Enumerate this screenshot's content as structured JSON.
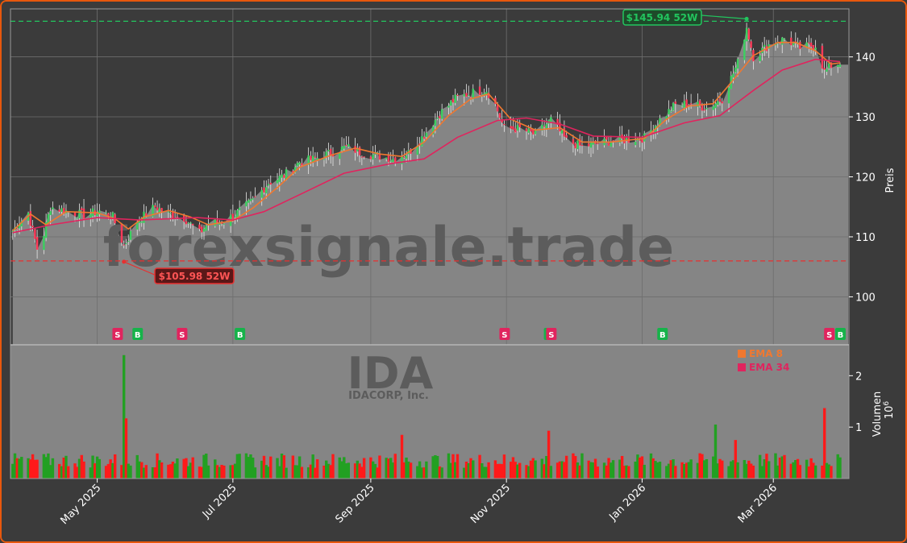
{
  "colors": {
    "background": "#3b3b3b",
    "plot_fill": "#858585",
    "border_accent": "#e8580c",
    "up": "#22a022",
    "down": "#ff1a1a",
    "ema8": "#f07830",
    "ema34": "#e0245e",
    "high_line": "#22c55e",
    "low_line": "#e83030",
    "buy": "#16b34a",
    "sell": "#e0245e"
  },
  "watermark": {
    "main": "forexsignale.trade",
    "ticker": "IDA",
    "company": "IDACORP, Inc."
  },
  "chart_data": [
    {
      "type": "candlestick",
      "ylabel": "Preis",
      "ylim": [
        92,
        148
      ],
      "yticks": [
        100,
        110,
        120,
        130,
        140
      ],
      "x_range": [
        "2025-03-23",
        "2026-04-04"
      ],
      "xticks": [
        {
          "date": "2025-05-01",
          "label": "May 2025"
        },
        {
          "date": "2025-07-01",
          "label": "Jul 2025"
        },
        {
          "date": "2025-09-01",
          "label": "Sep 2025"
        },
        {
          "date": "2025-11-01",
          "label": "Nov 2025"
        },
        {
          "date": "2026-01-01",
          "label": "Jan 2026"
        },
        {
          "date": "2026-03-01",
          "label": "Mar 2026"
        }
      ],
      "grid": true,
      "close_path": [
        [
          "2025-03-24",
          111.0
        ],
        [
          "2025-03-31",
          114.0
        ],
        [
          "2025-04-04",
          108.0
        ],
        [
          "2025-04-07",
          110.5
        ],
        [
          "2025-04-10",
          115.0
        ],
        [
          "2025-04-17",
          114.3
        ],
        [
          "2025-04-25",
          113.6
        ],
        [
          "2025-05-02",
          114.3
        ],
        [
          "2025-05-08",
          113.3
        ],
        [
          "2025-05-13",
          108.5
        ],
        [
          "2025-05-19",
          112.6
        ],
        [
          "2025-05-27",
          115.0
        ],
        [
          "2025-06-02",
          113.8
        ],
        [
          "2025-06-09",
          113.2
        ],
        [
          "2025-06-16",
          110.6
        ],
        [
          "2025-06-20",
          112.3
        ],
        [
          "2025-06-27",
          112.6
        ],
        [
          "2025-07-03",
          114.0
        ],
        [
          "2025-07-10",
          116.0
        ],
        [
          "2025-07-17",
          119.0
        ],
        [
          "2025-07-24",
          120.2
        ],
        [
          "2025-07-31",
          122.5
        ],
        [
          "2025-08-07",
          123.0
        ],
        [
          "2025-08-14",
          124.0
        ],
        [
          "2025-08-21",
          125.0
        ],
        [
          "2025-08-28",
          124.0
        ],
        [
          "2025-09-04",
          123.5
        ],
        [
          "2025-09-11",
          123.0
        ],
        [
          "2025-09-18",
          124.0
        ],
        [
          "2025-09-25",
          127.0
        ],
        [
          "2025-10-02",
          130.5
        ],
        [
          "2025-10-09",
          133.0
        ],
        [
          "2025-10-16",
          134.0
        ],
        [
          "2025-10-23",
          134.5
        ],
        [
          "2025-10-27",
          132.0
        ],
        [
          "2025-10-31",
          128.0
        ],
        [
          "2025-11-07",
          128.0
        ],
        [
          "2025-11-14",
          127.0
        ],
        [
          "2025-11-21",
          129.5
        ],
        [
          "2025-11-28",
          126.0
        ],
        [
          "2025-12-05",
          125.0
        ],
        [
          "2025-12-12",
          125.6
        ],
        [
          "2025-12-19",
          126.0
        ],
        [
          "2025-12-26",
          126.2
        ],
        [
          "2026-01-02",
          126.5
        ],
        [
          "2026-01-09",
          129.5
        ],
        [
          "2026-01-16",
          132.0
        ],
        [
          "2026-01-23",
          132.2
        ],
        [
          "2026-01-30",
          131.5
        ],
        [
          "2026-02-06",
          133.0
        ],
        [
          "2026-02-13",
          139.0
        ],
        [
          "2026-02-17",
          145.0
        ],
        [
          "2026-02-20",
          140.0
        ],
        [
          "2026-02-27",
          142.0
        ],
        [
          "2026-03-06",
          143.0
        ],
        [
          "2026-03-13",
          141.5
        ],
        [
          "2026-03-20",
          142.0
        ],
        [
          "2026-03-24",
          137.5
        ],
        [
          "2026-03-27",
          138.5
        ],
        [
          "2026-03-31",
          139.0
        ]
      ],
      "series": [
        {
          "name": "EMA 8",
          "path": [
            [
              "2025-03-24",
              111.0
            ],
            [
              "2025-04-01",
              113.8
            ],
            [
              "2025-04-08",
              112.0
            ],
            [
              "2025-04-17",
              114.2
            ],
            [
              "2025-05-01",
              114.0
            ],
            [
              "2025-05-09",
              113.0
            ],
            [
              "2025-05-15",
              111.3
            ],
            [
              "2025-05-22",
              113.3
            ],
            [
              "2025-06-02",
              114.4
            ],
            [
              "2025-06-12",
              113.3
            ],
            [
              "2025-06-20",
              112.0
            ],
            [
              "2025-07-01",
              112.7
            ],
            [
              "2025-07-10",
              114.8
            ],
            [
              "2025-07-21",
              118.2
            ],
            [
              "2025-07-31",
              121.6
            ],
            [
              "2025-08-14",
              123.6
            ],
            [
              "2025-08-25",
              124.8
            ],
            [
              "2025-09-05",
              123.8
            ],
            [
              "2025-09-15",
              123.4
            ],
            [
              "2025-09-25",
              125.8
            ],
            [
              "2025-10-06",
              130.2
            ],
            [
              "2025-10-16",
              133.0
            ],
            [
              "2025-10-24",
              133.8
            ],
            [
              "2025-11-03",
              129.6
            ],
            [
              "2025-11-14",
              127.8
            ],
            [
              "2025-11-25",
              128.2
            ],
            [
              "2025-12-05",
              125.8
            ],
            [
              "2025-12-18",
              125.8
            ],
            [
              "2026-01-02",
              126.4
            ],
            [
              "2026-01-12",
              129.6
            ],
            [
              "2026-01-22",
              131.8
            ],
            [
              "2026-02-02",
              132.2
            ],
            [
              "2026-02-12",
              136.6
            ],
            [
              "2026-02-20",
              140.2
            ],
            [
              "2026-03-03",
              142.4
            ],
            [
              "2026-03-11",
              142.4
            ],
            [
              "2026-03-20",
              141.0
            ],
            [
              "2026-03-27",
              138.8
            ],
            [
              "2026-03-31",
              139.0
            ]
          ]
        },
        {
          "name": "EMA 34",
          "path": [
            [
              "2025-03-24",
              110.7
            ],
            [
              "2025-04-10",
              112.0
            ],
            [
              "2025-05-01",
              113.2
            ],
            [
              "2025-05-20",
              112.8
            ],
            [
              "2025-06-15",
              113.2
            ],
            [
              "2025-07-01",
              112.8
            ],
            [
              "2025-07-15",
              114.2
            ],
            [
              "2025-08-01",
              117.2
            ],
            [
              "2025-08-20",
              120.6
            ],
            [
              "2025-09-10",
              122.2
            ],
            [
              "2025-09-25",
              123.0
            ],
            [
              "2025-10-10",
              126.6
            ],
            [
              "2025-10-28",
              129.4
            ],
            [
              "2025-11-10",
              129.8
            ],
            [
              "2025-11-25",
              128.8
            ],
            [
              "2025-12-10",
              126.8
            ],
            [
              "2026-01-01",
              126.6
            ],
            [
              "2026-01-20",
              129.0
            ],
            [
              "2026-02-05",
              130.2
            ],
            [
              "2026-02-20",
              134.4
            ],
            [
              "2026-03-05",
              137.8
            ],
            [
              "2026-03-20",
              139.6
            ],
            [
              "2026-03-31",
              139.2
            ]
          ]
        }
      ],
      "reference_lines": [
        {
          "label": "$145.94 52W",
          "value": 145.94,
          "date": "2026-02-17"
        },
        {
          "label": "$105.98 52W",
          "value": 105.98,
          "date": "2025-05-13"
        }
      ],
      "signals": [
        {
          "date": "2025-05-10",
          "label": "S"
        },
        {
          "date": "2025-05-19",
          "label": "B"
        },
        {
          "date": "2025-06-08",
          "label": "S"
        },
        {
          "date": "2025-07-04",
          "label": "B"
        },
        {
          "date": "2025-10-31",
          "label": "S"
        },
        {
          "date": "2025-11-20",
          "label": "B"
        },
        {
          "date": "2025-11-21",
          "label": "S"
        },
        {
          "date": "2026-01-10",
          "label": "B"
        },
        {
          "date": "2026-03-26",
          "label": "S"
        },
        {
          "date": "2026-03-31",
          "label": "B"
        }
      ]
    },
    {
      "type": "bar",
      "ylabel": "Volumen",
      "yunit": "10^6",
      "ylim": [
        0,
        2.6
      ],
      "yticks": [
        1,
        2
      ],
      "legend": {
        "placement": "top-right",
        "entries": [
          "EMA 8",
          "EMA 34"
        ]
      },
      "spikes": [
        {
          "date": "2025-05-13",
          "value": 2.4,
          "dir": "up"
        },
        {
          "date": "2025-05-14",
          "value": 1.17,
          "dir": "down"
        },
        {
          "date": "2025-09-15",
          "value": 0.85,
          "dir": "down"
        },
        {
          "date": "2025-11-20",
          "value": 0.93,
          "dir": "down"
        },
        {
          "date": "2026-02-03",
          "value": 1.05,
          "dir": "up"
        },
        {
          "date": "2026-02-12",
          "value": 0.75,
          "dir": "down"
        },
        {
          "date": "2026-03-24",
          "value": 1.37,
          "dir": "down"
        }
      ],
      "typical_value": 0.38
    }
  ]
}
